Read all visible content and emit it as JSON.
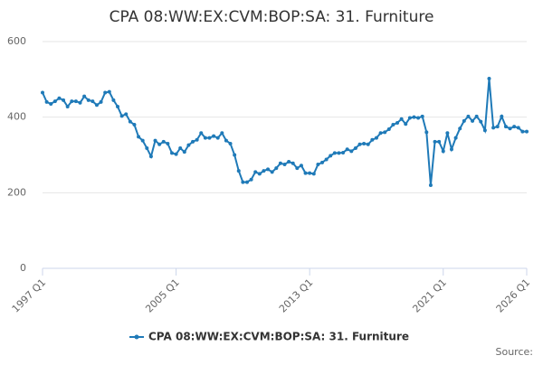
{
  "chart_data": {
    "type": "line",
    "title": "CPA 08:WW:EX:CVM:BOP:SA: 31. Furniture",
    "source": "Source:",
    "categories": [
      "1997 Q1",
      null,
      null,
      null,
      null,
      null,
      null,
      null,
      null,
      null,
      null,
      null,
      null,
      null,
      null,
      null,
      null,
      null,
      null,
      null,
      null,
      null,
      null,
      null,
      null,
      null,
      null,
      null,
      null,
      null,
      null,
      null,
      "2005 Q1",
      null,
      null,
      null,
      null,
      null,
      null,
      null,
      null,
      null,
      null,
      null,
      null,
      null,
      null,
      null,
      null,
      null,
      null,
      null,
      null,
      null,
      null,
      null,
      null,
      null,
      null,
      null,
      null,
      null,
      null,
      null,
      "2013 Q1",
      null,
      null,
      null,
      null,
      null,
      null,
      null,
      null,
      null,
      null,
      null,
      null,
      null,
      null,
      null,
      null,
      null,
      null,
      null,
      null,
      null,
      null,
      null,
      null,
      null,
      null,
      null,
      null,
      null,
      null,
      null,
      "2021 Q1",
      null,
      null,
      null,
      null,
      null,
      null,
      null,
      null,
      null,
      null,
      null,
      null,
      null,
      null,
      null,
      null,
      null,
      null,
      null,
      "2026 Q1"
    ],
    "series": [
      {
        "name": "CPA 08:WW:EX:CVM:BOP:SA: 31. Furniture",
        "color": "#1f7ab8",
        "values": [
          465,
          440,
          435,
          442,
          450,
          445,
          428,
          442,
          442,
          438,
          455,
          445,
          442,
          432,
          440,
          465,
          467,
          445,
          428,
          403,
          408,
          388,
          380,
          348,
          338,
          318,
          296,
          338,
          328,
          335,
          330,
          305,
          302,
          318,
          308,
          326,
          335,
          340,
          358,
          345,
          345,
          350,
          345,
          358,
          338,
          330,
          300,
          258,
          228,
          228,
          235,
          255,
          250,
          258,
          262,
          255,
          265,
          278,
          275,
          282,
          278,
          265,
          272,
          252,
          252,
          250,
          275,
          280,
          288,
          298,
          305,
          305,
          306,
          315,
          310,
          318,
          328,
          330,
          328,
          340,
          345,
          358,
          360,
          368,
          380,
          385,
          395,
          382,
          398,
          400,
          398,
          402,
          360,
          220,
          335,
          335,
          310,
          358,
          315,
          345,
          370,
          390,
          402,
          390,
          402,
          388,
          365,
          502,
          372,
          375,
          402,
          375,
          370,
          375,
          372,
          362,
          362
        ]
      }
    ],
    "ylim": [
      0,
      600
    ],
    "yticks": [
      0,
      200,
      400,
      600
    ],
    "grid": true
  }
}
